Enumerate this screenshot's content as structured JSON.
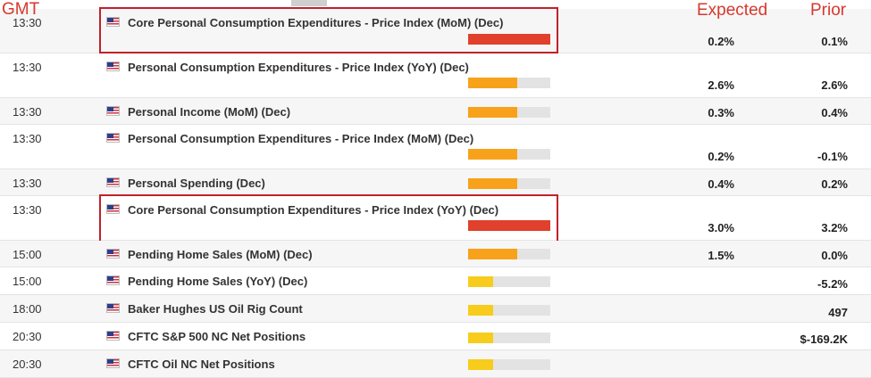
{
  "headers": {
    "time": "GMT",
    "expected": "Expected",
    "prior": "Prior"
  },
  "colors": {
    "high": "#e0402c",
    "medium": "#f7a21a",
    "low": "#f7cc1c",
    "track": "#e3e3e3",
    "highlight": "#c0222a"
  },
  "rows": [
    {
      "time": "13:30",
      "event": "Core Personal Consumption Expenditures - Price Index (MoM) (Dec)",
      "expected": "0.2%",
      "prior": "0.1%",
      "impact": "high",
      "impact_fraction": 1.0,
      "highlighted": true
    },
    {
      "time": "13:30",
      "event": "Personal Consumption Expenditures - Price Index (YoY) (Dec)",
      "expected": "2.6%",
      "prior": "2.6%",
      "impact": "medium",
      "impact_fraction": 0.6
    },
    {
      "time": "13:30",
      "event": "Personal Income (MoM) (Dec)",
      "expected": "0.3%",
      "prior": "0.4%",
      "impact": "medium",
      "impact_fraction": 0.6
    },
    {
      "time": "13:30",
      "event": "Personal Consumption Expenditures - Price Index (MoM) (Dec)",
      "expected": "0.2%",
      "prior": "-0.1%",
      "impact": "medium",
      "impact_fraction": 0.6
    },
    {
      "time": "13:30",
      "event": "Personal Spending (Dec)",
      "expected": "0.4%",
      "prior": "0.2%",
      "impact": "medium",
      "impact_fraction": 0.6
    },
    {
      "time": "13:30",
      "event": "Core Personal Consumption Expenditures - Price Index (YoY) (Dec)",
      "expected": "3.0%",
      "prior": "3.2%",
      "impact": "high",
      "impact_fraction": 1.0,
      "highlighted": true
    },
    {
      "time": "15:00",
      "event": "Pending Home Sales (MoM) (Dec)",
      "expected": "1.5%",
      "prior": "0.0%",
      "impact": "medium",
      "impact_fraction": 0.6
    },
    {
      "time": "15:00",
      "event": "Pending Home Sales (YoY) (Dec)",
      "expected": "",
      "prior": "-5.2%",
      "impact": "low",
      "impact_fraction": 0.3
    },
    {
      "time": "18:00",
      "event": "Baker Hughes US Oil Rig Count",
      "expected": "",
      "prior": "497",
      "impact": "low",
      "impact_fraction": 0.3
    },
    {
      "time": "20:30",
      "event": "CFTC S&P 500 NC Net Positions",
      "expected": "",
      "prior": "$-169.2K",
      "impact": "low",
      "impact_fraction": 0.3
    },
    {
      "time": "20:30",
      "event": "CFTC Oil NC Net Positions",
      "expected": "",
      "prior": "",
      "impact": "low",
      "impact_fraction": 0.3
    }
  ]
}
